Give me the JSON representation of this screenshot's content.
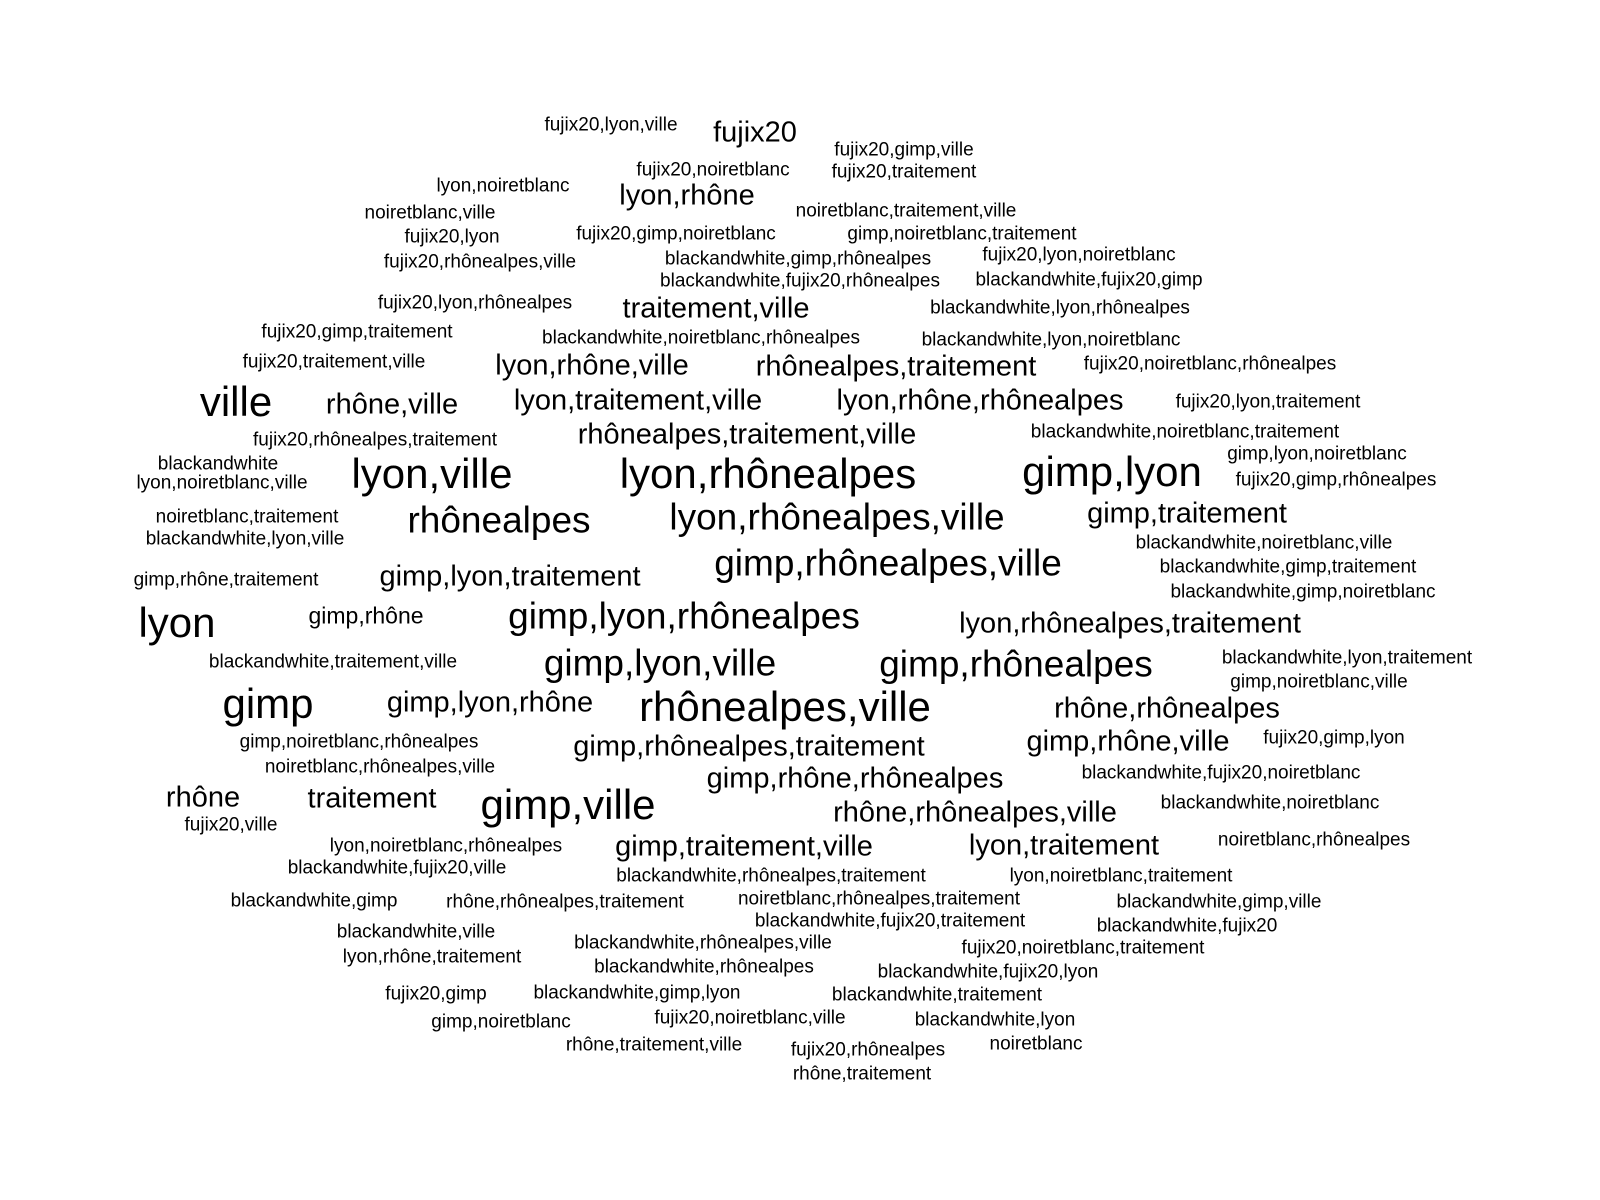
{
  "words": [
    {
      "text": "fujix20,lyon,ville",
      "weight": 1
    },
    {
      "text": "fujix20",
      "weight": 3
    },
    {
      "text": "fujix20,gimp,ville",
      "weight": 1
    },
    {
      "text": "fujix20,noiretblanc",
      "weight": 1
    },
    {
      "text": "fujix20,traitement",
      "weight": 1
    },
    {
      "text": "lyon,noiretblanc",
      "weight": 1
    },
    {
      "text": "lyon,rhône",
      "weight": 3
    },
    {
      "text": "noiretblanc,ville",
      "weight": 1
    },
    {
      "text": "noiretblanc,traitement,ville",
      "weight": 1
    },
    {
      "text": "fujix20,lyon",
      "weight": 1
    },
    {
      "text": "fujix20,gimp,noiretblanc",
      "weight": 1
    },
    {
      "text": "gimp,noiretblanc,traitement",
      "weight": 1
    },
    {
      "text": "fujix20,rhônealpes,ville",
      "weight": 1
    },
    {
      "text": "blackandwhite,gimp,rhônealpes",
      "weight": 1
    },
    {
      "text": "fujix20,lyon,noiretblanc",
      "weight": 1
    },
    {
      "text": "blackandwhite,fujix20,rhônealpes",
      "weight": 1
    },
    {
      "text": "blackandwhite,fujix20,gimp",
      "weight": 1
    },
    {
      "text": "fujix20,lyon,rhônealpes",
      "weight": 1
    },
    {
      "text": "traitement,ville",
      "weight": 3
    },
    {
      "text": "blackandwhite,lyon,rhônealpes",
      "weight": 1
    },
    {
      "text": "fujix20,gimp,traitement",
      "weight": 1
    },
    {
      "text": "blackandwhite,noiretblanc,rhônealpes",
      "weight": 1
    },
    {
      "text": "blackandwhite,lyon,noiretblanc",
      "weight": 1
    },
    {
      "text": "fujix20,traitement,ville",
      "weight": 1
    },
    {
      "text": "lyon,rhône,ville",
      "weight": 3
    },
    {
      "text": "rhônealpes,traitement",
      "weight": 3
    },
    {
      "text": "fujix20,noiretblanc,rhônealpes",
      "weight": 1
    },
    {
      "text": "ville",
      "weight": 5
    },
    {
      "text": "rhône,ville",
      "weight": 3
    },
    {
      "text": "lyon,traitement,ville",
      "weight": 3
    },
    {
      "text": "lyon,rhône,rhônealpes",
      "weight": 3
    },
    {
      "text": "fujix20,lyon,traitement",
      "weight": 1
    },
    {
      "text": "fujix20,rhônealpes,traitement",
      "weight": 1
    },
    {
      "text": "rhônealpes,traitement,ville",
      "weight": 3
    },
    {
      "text": "blackandwhite,noiretblanc,traitement",
      "weight": 1
    },
    {
      "text": "blackandwhite",
      "weight": 1
    },
    {
      "text": "gimp,lyon,noiretblanc",
      "weight": 1
    },
    {
      "text": "lyon,ville",
      "weight": 5
    },
    {
      "text": "lyon,rhônealpes",
      "weight": 5
    },
    {
      "text": "gimp,lyon",
      "weight": 5
    },
    {
      "text": "lyon,noiretblanc,ville",
      "weight": 1
    },
    {
      "text": "fujix20,gimp,rhônealpes",
      "weight": 1
    },
    {
      "text": "noiretblanc,traitement",
      "weight": 1
    },
    {
      "text": "rhônealpes",
      "weight": 4
    },
    {
      "text": "lyon,rhônealpes,ville",
      "weight": 4
    },
    {
      "text": "gimp,traitement",
      "weight": 3
    },
    {
      "text": "blackandwhite,lyon,ville",
      "weight": 1
    },
    {
      "text": "blackandwhite,noiretblanc,ville",
      "weight": 1
    },
    {
      "text": "gimp,rhônealpes,ville",
      "weight": 4
    },
    {
      "text": "blackandwhite,gimp,traitement",
      "weight": 1
    },
    {
      "text": "gimp,rhône,traitement",
      "weight": 1
    },
    {
      "text": "gimp,lyon,traitement",
      "weight": 3
    },
    {
      "text": "blackandwhite,gimp,noiretblanc",
      "weight": 1
    },
    {
      "text": "lyon",
      "weight": 5
    },
    {
      "text": "gimp,rhône",
      "weight": 2
    },
    {
      "text": "gimp,lyon,rhônealpes",
      "weight": 4
    },
    {
      "text": "lyon,rhônealpes,traitement",
      "weight": 3
    },
    {
      "text": "blackandwhite,traitement,ville",
      "weight": 1
    },
    {
      "text": "gimp,lyon,ville",
      "weight": 4
    },
    {
      "text": "gimp,rhônealpes",
      "weight": 4
    },
    {
      "text": "blackandwhite,lyon,traitement",
      "weight": 1
    },
    {
      "text": "gimp,noiretblanc,ville",
      "weight": 1
    },
    {
      "text": "gimp",
      "weight": 5
    },
    {
      "text": "gimp,lyon,rhône",
      "weight": 3
    },
    {
      "text": "rhônealpes,ville",
      "weight": 5
    },
    {
      "text": "rhône,rhônealpes",
      "weight": 3
    },
    {
      "text": "gimp,noiretblanc,rhônealpes",
      "weight": 1
    },
    {
      "text": "gimp,rhônealpes,traitement",
      "weight": 3
    },
    {
      "text": "gimp,rhône,ville",
      "weight": 3
    },
    {
      "text": "fujix20,gimp,lyon",
      "weight": 1
    },
    {
      "text": "noiretblanc,rhônealpes,ville",
      "weight": 1
    },
    {
      "text": "blackandwhite,fujix20,noiretblanc",
      "weight": 1
    },
    {
      "text": "gimp,rhône,rhônealpes",
      "weight": 3
    },
    {
      "text": "rhône",
      "weight": 3
    },
    {
      "text": "traitement",
      "weight": 3
    },
    {
      "text": "gimp,ville",
      "weight": 5
    },
    {
      "text": "blackandwhite,noiretblanc",
      "weight": 1
    },
    {
      "text": "fujix20,ville",
      "weight": 1
    },
    {
      "text": "rhône,rhônealpes,ville",
      "weight": 3
    },
    {
      "text": "lyon,noiretblanc,rhônealpes",
      "weight": 1
    },
    {
      "text": "gimp,traitement,ville",
      "weight": 3
    },
    {
      "text": "lyon,traitement",
      "weight": 3
    },
    {
      "text": "noiretblanc,rhônealpes",
      "weight": 1
    },
    {
      "text": "blackandwhite,fujix20,ville",
      "weight": 1
    },
    {
      "text": "blackandwhite,rhônealpes,traitement",
      "weight": 1
    },
    {
      "text": "lyon,noiretblanc,traitement",
      "weight": 1
    },
    {
      "text": "blackandwhite,gimp",
      "weight": 1
    },
    {
      "text": "rhône,rhônealpes,traitement",
      "weight": 1
    },
    {
      "text": "noiretblanc,rhônealpes,traitement",
      "weight": 1
    },
    {
      "text": "blackandwhite,gimp,ville",
      "weight": 1
    },
    {
      "text": "blackandwhite,fujix20,traitement",
      "weight": 1
    },
    {
      "text": "blackandwhite,fujix20",
      "weight": 1
    },
    {
      "text": "blackandwhite,ville",
      "weight": 1
    },
    {
      "text": "blackandwhite,rhônealpes,ville",
      "weight": 1
    },
    {
      "text": "fujix20,noiretblanc,traitement",
      "weight": 1
    },
    {
      "text": "lyon,rhône,traitement",
      "weight": 1
    },
    {
      "text": "blackandwhite,rhônealpes",
      "weight": 1
    },
    {
      "text": "blackandwhite,fujix20,lyon",
      "weight": 1
    },
    {
      "text": "fujix20,gimp",
      "weight": 1
    },
    {
      "text": "blackandwhite,gimp,lyon",
      "weight": 1
    },
    {
      "text": "blackandwhite,traitement",
      "weight": 1
    },
    {
      "text": "gimp,noiretblanc",
      "weight": 1
    },
    {
      "text": "fujix20,noiretblanc,ville",
      "weight": 1
    },
    {
      "text": "blackandwhite,lyon",
      "weight": 1
    },
    {
      "text": "rhône,traitement,ville",
      "weight": 1
    },
    {
      "text": "fujix20,rhônealpes",
      "weight": 1
    },
    {
      "text": "noiretblanc",
      "weight": 1
    },
    {
      "text": "rhône,traitement",
      "weight": 1
    }
  ]
}
